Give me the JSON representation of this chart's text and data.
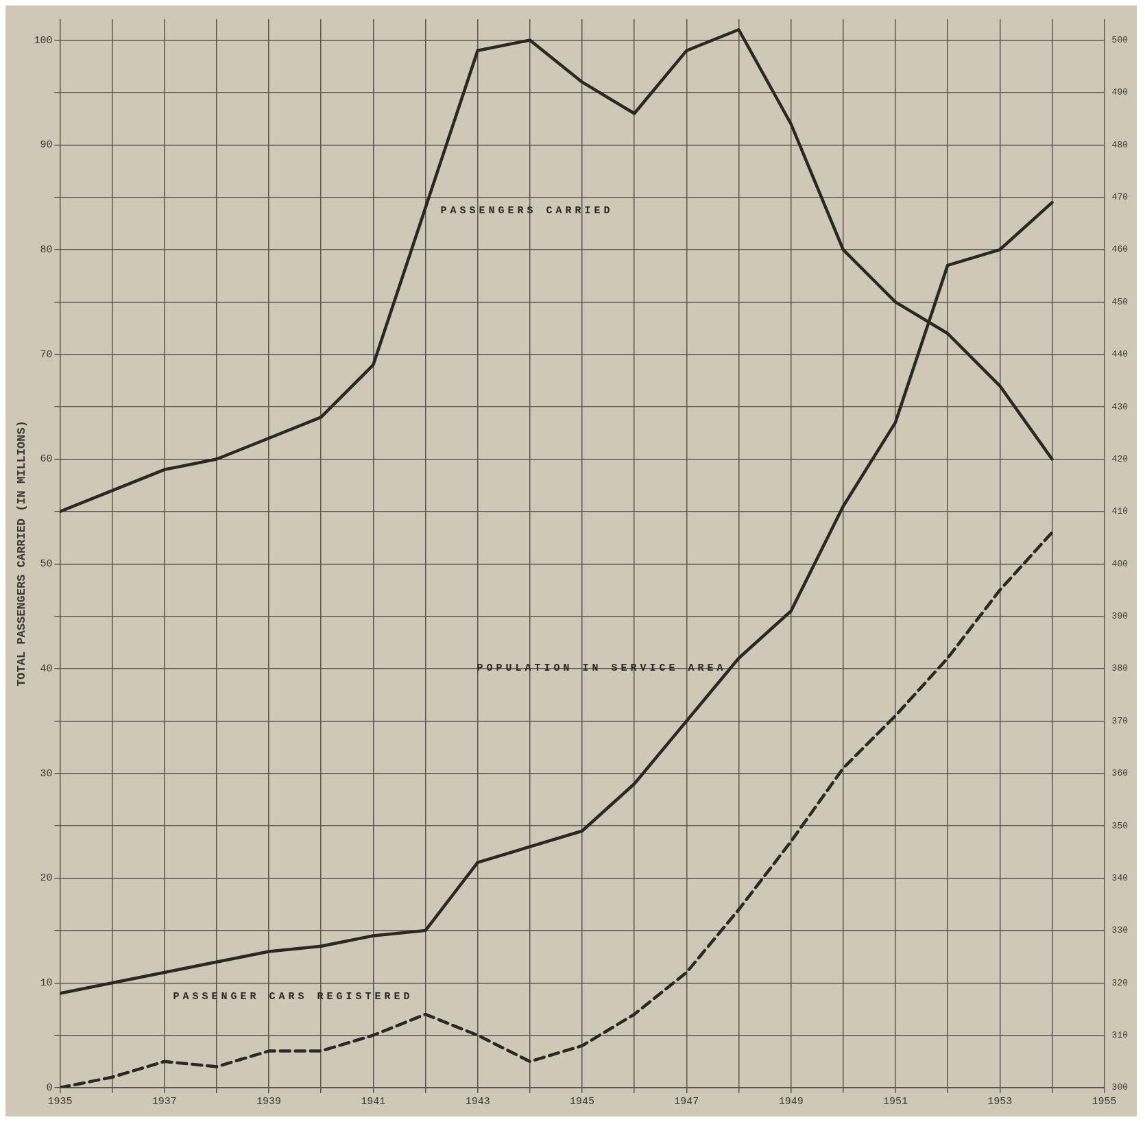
{
  "chart_data": {
    "type": "line",
    "ylabel": "TOTAL PASSENGERS CARRIED (IN MILLIONS)",
    "x": [
      1935,
      1936,
      1937,
      1938,
      1939,
      1940,
      1941,
      1942,
      1943,
      1944,
      1945,
      1946,
      1947,
      1948,
      1949,
      1950,
      1951,
      1952,
      1953,
      1954
    ],
    "series": [
      {
        "name": "PASSENGERS CARRIED",
        "color": "#2a2724",
        "values": [
          55,
          57,
          59,
          60,
          62,
          64,
          69,
          84,
          99,
          100,
          96,
          93,
          99,
          101,
          92,
          80,
          75,
          72,
          67,
          60
        ]
      },
      {
        "name": "POPULATION IN SERVICE AREA",
        "color": "#2a2724",
        "axis": "y2",
        "values": [
          318,
          320,
          322,
          324,
          326,
          327,
          329,
          330,
          343,
          346,
          349,
          358,
          370,
          382,
          391,
          411,
          427,
          457,
          460,
          469
        ]
      },
      {
        "name": "PASSENGER CARS REGISTERED",
        "color": "#2a2724",
        "axis": "y2",
        "line_style": "dashed",
        "values": [
          300,
          302,
          305,
          304,
          307,
          307,
          310,
          314,
          310,
          305,
          308,
          314,
          322,
          334,
          347,
          361,
          371,
          382,
          395,
          406
        ]
      }
    ],
    "xlim": [
      1935,
      1955
    ],
    "xticks": [
      1935,
      {
        "value": 1936,
        "label": null
      },
      1937,
      {
        "value": 1938,
        "label": null
      },
      1939,
      {
        "value": 1940,
        "label": null
      },
      1941,
      {
        "value": 1942,
        "label": null
      },
      1943,
      {
        "value": 1944,
        "label": null
      },
      1945,
      {
        "value": 1946,
        "label": null
      },
      1947,
      {
        "value": 1948,
        "label": null
      },
      1949,
      {
        "value": 1950,
        "label": null
      },
      1951,
      {
        "value": 1952,
        "label": null
      },
      1953,
      {
        "value": 1954,
        "label": null
      },
      1955
    ],
    "ylim": [
      0,
      102
    ],
    "yticks": [
      0,
      {
        "value": 5,
        "label": null
      },
      10,
      {
        "value": 15,
        "label": null
      },
      20,
      {
        "value": 25,
        "label": null
      },
      30,
      {
        "value": 35,
        "label": null
      },
      40,
      {
        "value": 45,
        "label": null
      },
      50,
      {
        "value": 55,
        "label": null
      },
      60,
      {
        "value": 65,
        "label": null
      },
      70,
      {
        "value": 75,
        "label": null
      },
      80,
      {
        "value": 85,
        "label": null
      },
      90,
      {
        "value": 95,
        "label": null
      },
      100
    ],
    "y2lim": [
      300,
      504
    ],
    "y2ticks": [
      300,
      310,
      320,
      330,
      340,
      350,
      360,
      370,
      380,
      390,
      400,
      410,
      420,
      430,
      440,
      450,
      460,
      470,
      480,
      490,
      500
    ],
    "grid": true,
    "legend": false,
    "marker": "none",
    "line_style": "solid"
  }
}
